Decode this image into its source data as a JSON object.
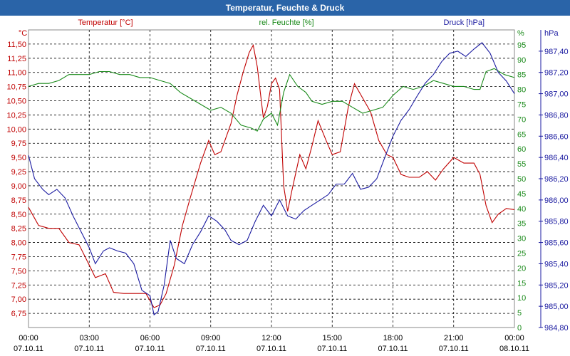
{
  "window": {
    "title": "Temperatur, Feuchte & Druck"
  },
  "chart_data": {
    "type": "line",
    "title": "Temperatur, Feuchte & Druck",
    "grid": true,
    "x_range_hours": [
      0,
      24
    ],
    "x_ticks": [
      {
        "time": "00:00",
        "date": "07.10.11"
      },
      {
        "time": "03:00",
        "date": "07.10.11"
      },
      {
        "time": "06:00",
        "date": "07.10.11"
      },
      {
        "time": "09:00",
        "date": "07.10.11"
      },
      {
        "time": "12:00",
        "date": "07.10.11"
      },
      {
        "time": "15:00",
        "date": "07.10.11"
      },
      {
        "time": "18:00",
        "date": "07.10.11"
      },
      {
        "time": "21:00",
        "date": "07.10.11"
      },
      {
        "time": "00:00",
        "date": "08.10.11"
      }
    ],
    "axes": {
      "temperature": {
        "unit": "°C",
        "color": "#c00000",
        "min": 6.5,
        "max": 11.75,
        "ticks": [
          "6,75",
          "7,00",
          "7,25",
          "7,50",
          "7,75",
          "8,00",
          "8,25",
          "8,50",
          "8,75",
          "9,00",
          "9,25",
          "9,50",
          "9,75",
          "10,00",
          "10,25",
          "10,50",
          "10,75",
          "11,00",
          "11,25",
          "11,50"
        ]
      },
      "humidity": {
        "unit": "%",
        "color": "#1a8a1a",
        "min": 0,
        "max": 100,
        "ticks": [
          "0",
          "5",
          "10",
          "15",
          "20",
          "25",
          "30",
          "35",
          "40",
          "45",
          "50",
          "55",
          "60",
          "65",
          "70",
          "75",
          "80",
          "85",
          "90",
          "95"
        ]
      },
      "pressure": {
        "unit": "hPa",
        "color": "#1a1aa0",
        "min": 984.8,
        "max": 987.6,
        "ticks": [
          "984,80",
          "985,00",
          "985,20",
          "985,40",
          "985,60",
          "985,80",
          "986,00",
          "986,20",
          "986,40",
          "986,60",
          "986,80",
          "987,00",
          "987,20",
          "987,40"
        ]
      }
    },
    "series": [
      {
        "name": "Temperatur [°C]",
        "axis": "temperature",
        "color": "#c00000",
        "points": [
          [
            0,
            8.62
          ],
          [
            0.5,
            8.3
          ],
          [
            1,
            8.25
          ],
          [
            1.5,
            8.25
          ],
          [
            2,
            8.0
          ],
          [
            2.5,
            7.96
          ],
          [
            3,
            7.6
          ],
          [
            3.3,
            7.38
          ],
          [
            3.8,
            7.45
          ],
          [
            4.2,
            7.12
          ],
          [
            4.7,
            7.1
          ],
          [
            5.2,
            7.1
          ],
          [
            5.8,
            7.1
          ],
          [
            6.2,
            6.85
          ],
          [
            6.5,
            6.9
          ],
          [
            6.8,
            7.1
          ],
          [
            7.2,
            7.6
          ],
          [
            7.6,
            8.3
          ],
          [
            8,
            8.8
          ],
          [
            8.5,
            9.4
          ],
          [
            8.9,
            9.8
          ],
          [
            9.2,
            9.55
          ],
          [
            9.5,
            9.6
          ],
          [
            10,
            10.1
          ],
          [
            10.3,
            10.6
          ],
          [
            10.6,
            11.0
          ],
          [
            10.9,
            11.35
          ],
          [
            11.1,
            11.48
          ],
          [
            11.3,
            11.1
          ],
          [
            11.6,
            10.2
          ],
          [
            11.8,
            10.4
          ],
          [
            12,
            10.8
          ],
          [
            12.2,
            10.9
          ],
          [
            12.4,
            10.7
          ],
          [
            12.6,
            9.0
          ],
          [
            12.8,
            8.55
          ],
          [
            13,
            8.9
          ],
          [
            13.4,
            9.55
          ],
          [
            13.7,
            9.3
          ],
          [
            14,
            9.7
          ],
          [
            14.3,
            10.15
          ],
          [
            14.7,
            9.8
          ],
          [
            15,
            9.55
          ],
          [
            15.4,
            9.6
          ],
          [
            15.8,
            10.4
          ],
          [
            16.1,
            10.8
          ],
          [
            16.5,
            10.55
          ],
          [
            16.9,
            10.3
          ],
          [
            17.3,
            9.8
          ],
          [
            17.7,
            9.55
          ],
          [
            18,
            9.5
          ],
          [
            18.4,
            9.2
          ],
          [
            18.8,
            9.15
          ],
          [
            19.3,
            9.15
          ],
          [
            19.7,
            9.25
          ],
          [
            20.1,
            9.1
          ],
          [
            20.5,
            9.3
          ],
          [
            21,
            9.5
          ],
          [
            21.5,
            9.4
          ],
          [
            22,
            9.4
          ],
          [
            22.3,
            9.2
          ],
          [
            22.6,
            8.65
          ],
          [
            22.9,
            8.35
          ],
          [
            23.2,
            8.5
          ],
          [
            23.6,
            8.6
          ],
          [
            24,
            8.58
          ]
        ]
      },
      {
        "name": "rel. Feuchte [%]",
        "axis": "humidity",
        "color": "#1a8a1a",
        "points": [
          [
            0,
            81
          ],
          [
            0.5,
            82
          ],
          [
            1,
            82
          ],
          [
            1.5,
            83
          ],
          [
            2,
            85
          ],
          [
            2.5,
            85
          ],
          [
            3,
            85
          ],
          [
            3.5,
            86
          ],
          [
            4,
            86
          ],
          [
            4.5,
            85
          ],
          [
            5,
            85
          ],
          [
            5.5,
            84
          ],
          [
            6,
            84
          ],
          [
            6.5,
            83
          ],
          [
            7,
            82
          ],
          [
            7.5,
            79
          ],
          [
            8,
            77
          ],
          [
            8.5,
            75
          ],
          [
            9,
            73
          ],
          [
            9.5,
            74
          ],
          [
            10,
            72
          ],
          [
            10.5,
            68
          ],
          [
            11,
            67
          ],
          [
            11.3,
            66
          ],
          [
            11.6,
            70
          ],
          [
            12,
            72
          ],
          [
            12.3,
            68
          ],
          [
            12.6,
            79
          ],
          [
            12.9,
            85
          ],
          [
            13.3,
            81
          ],
          [
            13.7,
            79
          ],
          [
            14,
            76
          ],
          [
            14.5,
            75
          ],
          [
            15,
            76
          ],
          [
            15.5,
            76
          ],
          [
            16,
            74
          ],
          [
            16.5,
            72
          ],
          [
            17,
            73
          ],
          [
            17.5,
            74
          ],
          [
            18,
            78
          ],
          [
            18.5,
            81
          ],
          [
            19,
            80
          ],
          [
            19.5,
            81
          ],
          [
            20,
            83
          ],
          [
            20.5,
            82
          ],
          [
            21,
            81
          ],
          [
            21.5,
            81
          ],
          [
            22,
            80
          ],
          [
            22.3,
            80
          ],
          [
            22.6,
            86
          ],
          [
            23,
            87
          ],
          [
            23.5,
            85
          ],
          [
            24,
            84
          ]
        ]
      },
      {
        "name": "Druck [hPa]",
        "axis": "pressure",
        "color": "#1a1aa0",
        "points": [
          [
            0,
            986.42
          ],
          [
            0.3,
            986.2
          ],
          [
            0.7,
            986.1
          ],
          [
            1,
            986.05
          ],
          [
            1.4,
            986.1
          ],
          [
            1.8,
            986.02
          ],
          [
            2.2,
            985.85
          ],
          [
            2.6,
            985.7
          ],
          [
            3,
            985.55
          ],
          [
            3.3,
            985.4
          ],
          [
            3.7,
            985.52
          ],
          [
            4,
            985.55
          ],
          [
            4.4,
            985.52
          ],
          [
            4.8,
            985.5
          ],
          [
            5.2,
            985.4
          ],
          [
            5.6,
            985.15
          ],
          [
            6,
            985.1
          ],
          [
            6.2,
            984.92
          ],
          [
            6.4,
            984.95
          ],
          [
            6.7,
            985.2
          ],
          [
            7,
            985.62
          ],
          [
            7.3,
            985.45
          ],
          [
            7.7,
            985.4
          ],
          [
            8.1,
            985.58
          ],
          [
            8.5,
            985.7
          ],
          [
            8.9,
            985.85
          ],
          [
            9.3,
            985.8
          ],
          [
            9.7,
            985.72
          ],
          [
            10,
            985.62
          ],
          [
            10.4,
            985.58
          ],
          [
            10.8,
            985.62
          ],
          [
            11.2,
            985.8
          ],
          [
            11.6,
            985.95
          ],
          [
            12,
            985.85
          ],
          [
            12.4,
            986.0
          ],
          [
            12.8,
            985.85
          ],
          [
            13.2,
            985.82
          ],
          [
            13.6,
            985.9
          ],
          [
            14,
            985.95
          ],
          [
            14.4,
            986.0
          ],
          [
            14.8,
            986.05
          ],
          [
            15.2,
            986.15
          ],
          [
            15.6,
            986.15
          ],
          [
            16,
            986.25
          ],
          [
            16.4,
            986.1
          ],
          [
            16.8,
            986.12
          ],
          [
            17.2,
            986.2
          ],
          [
            17.6,
            986.4
          ],
          [
            18,
            986.6
          ],
          [
            18.4,
            986.75
          ],
          [
            18.8,
            986.85
          ],
          [
            19.2,
            986.98
          ],
          [
            19.6,
            987.1
          ],
          [
            20,
            987.18
          ],
          [
            20.4,
            987.3
          ],
          [
            20.8,
            987.38
          ],
          [
            21.2,
            987.4
          ],
          [
            21.6,
            987.35
          ],
          [
            22,
            987.42
          ],
          [
            22.4,
            987.48
          ],
          [
            22.8,
            987.38
          ],
          [
            23.2,
            987.2
          ],
          [
            23.6,
            987.12
          ],
          [
            24,
            987.0
          ]
        ]
      }
    ]
  }
}
